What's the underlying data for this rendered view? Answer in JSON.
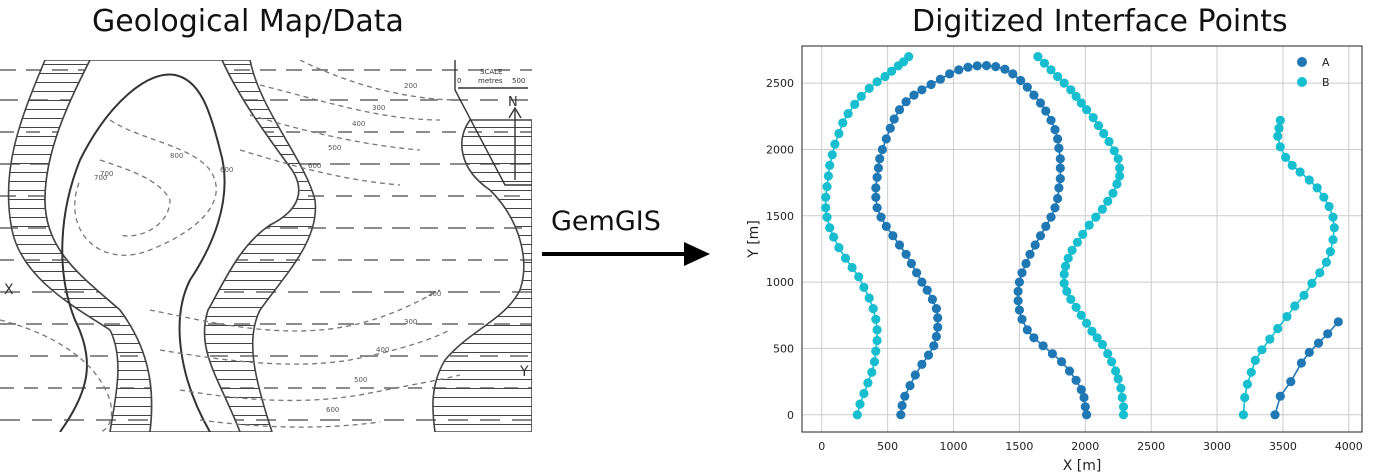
{
  "left": {
    "title": "Geological Map/Data",
    "map": {
      "scale_label": "SCALE",
      "scale_units": "metres",
      "scale_start": "0",
      "scale_end": "500",
      "north_label": "N",
      "x_marker": "X",
      "y_marker": "Y",
      "contour_labels": [
        "200",
        "300",
        "400",
        "500",
        "600",
        "600",
        "700",
        "700",
        "800",
        "200",
        "300",
        "400",
        "500",
        "600"
      ]
    }
  },
  "arrow": {
    "label": "GemGIS"
  },
  "chart_data": {
    "type": "scatter",
    "title": "Digitized Interface Points",
    "xlabel": "X [m]",
    "ylabel": "Y [m]",
    "xlim": [
      -150,
      4100
    ],
    "ylim": [
      -130,
      2780
    ],
    "xticks": [
      0,
      500,
      1000,
      1500,
      2000,
      2500,
      3000,
      3500,
      4000
    ],
    "yticks": [
      0,
      500,
      1000,
      1500,
      2000,
      2500
    ],
    "grid": true,
    "legend_position": "top-right",
    "series": [
      {
        "name": "A",
        "color": "#1f77b4",
        "lines": [
          [
            [
              600,
              0
            ],
            [
              610,
              70
            ],
            [
              630,
              140
            ],
            [
              670,
              220
            ],
            [
              710,
              300
            ],
            [
              760,
              380
            ],
            [
              810,
              450
            ],
            [
              850,
              520
            ],
            [
              870,
              590
            ],
            [
              880,
              660
            ],
            [
              880,
              730
            ],
            [
              870,
              800
            ],
            [
              840,
              870
            ],
            [
              800,
              940
            ],
            [
              760,
              1000
            ],
            [
              720,
              1070
            ],
            [
              680,
              1140
            ],
            [
              640,
              1210
            ],
            [
              590,
              1280
            ],
            [
              540,
              1350
            ],
            [
              490,
              1420
            ],
            [
              450,
              1490
            ],
            [
              420,
              1560
            ],
            [
              410,
              1640
            ],
            [
              410,
              1710
            ],
            [
              420,
              1790
            ],
            [
              430,
              1860
            ],
            [
              440,
              1930
            ],
            [
              460,
              2000
            ],
            [
              490,
              2080
            ],
            [
              520,
              2160
            ],
            [
              550,
              2230
            ],
            [
              590,
              2300
            ],
            [
              640,
              2360
            ],
            [
              700,
              2410
            ],
            [
              760,
              2450
            ],
            [
              830,
              2490
            ],
            [
              900,
              2530
            ],
            [
              970,
              2570
            ],
            [
              1040,
              2600
            ],
            [
              1110,
              2620
            ],
            [
              1180,
              2630
            ],
            [
              1250,
              2632
            ],
            [
              1320,
              2625
            ],
            [
              1390,
              2605
            ],
            [
              1450,
              2570
            ],
            [
              1510,
              2520
            ],
            [
              1560,
              2470
            ],
            [
              1610,
              2410
            ],
            [
              1660,
              2350
            ],
            [
              1700,
              2290
            ],
            [
              1740,
              2220
            ],
            [
              1770,
              2150
            ],
            [
              1790,
              2080
            ],
            [
              1800,
              2010
            ],
            [
              1810,
              1930
            ],
            [
              1810,
              1860
            ],
            [
              1810,
              1780
            ],
            [
              1800,
              1710
            ],
            [
              1790,
              1630
            ],
            [
              1770,
              1560
            ],
            [
              1740,
              1490
            ],
            [
              1700,
              1420
            ],
            [
              1660,
              1350
            ],
            [
              1620,
              1280
            ],
            [
              1580,
              1210
            ],
            [
              1550,
              1140
            ],
            [
              1520,
              1070
            ],
            [
              1500,
              1000
            ],
            [
              1490,
              930
            ],
            [
              1490,
              860
            ],
            [
              1500,
              790
            ],
            [
              1520,
              720
            ],
            [
              1560,
              640
            ],
            [
              1610,
              580
            ],
            [
              1680,
              520
            ],
            [
              1750,
              460
            ],
            [
              1820,
              400
            ],
            [
              1880,
              330
            ],
            [
              1930,
              260
            ],
            [
              1970,
              190
            ],
            [
              1990,
              130
            ],
            [
              2000,
              60
            ],
            [
              2010,
              0
            ]
          ],
          [
            [
              3440,
              0
            ],
            [
              3480,
              140
            ],
            [
              3560,
              250
            ],
            [
              3640,
              390
            ],
            [
              3700,
              470
            ],
            [
              3770,
              540
            ],
            [
              3840,
              610
            ],
            [
              3920,
              700
            ]
          ]
        ]
      },
      {
        "name": "B",
        "color": "#17becf",
        "lines": [
          [
            [
              270,
              0
            ],
            [
              290,
              80
            ],
            [
              320,
              160
            ],
            [
              350,
              240
            ],
            [
              380,
              320
            ],
            [
              400,
              400
            ],
            [
              410,
              480
            ],
            [
              420,
              560
            ],
            [
              420,
              640
            ],
            [
              410,
              720
            ],
            [
              390,
              800
            ],
            [
              360,
              880
            ],
            [
              320,
              960
            ],
            [
              280,
              1040
            ],
            [
              230,
              1110
            ],
            [
              180,
              1180
            ],
            [
              130,
              1260
            ],
            [
              90,
              1340
            ],
            [
              60,
              1410
            ],
            [
              40,
              1490
            ],
            [
              30,
              1560
            ],
            [
              30,
              1640
            ],
            [
              40,
              1720
            ],
            [
              50,
              1800
            ],
            [
              60,
              1880
            ],
            [
              80,
              1960
            ],
            [
              100,
              2040
            ],
            [
              130,
              2120
            ],
            [
              160,
              2200
            ],
            [
              200,
              2270
            ],
            [
              250,
              2340
            ],
            [
              300,
              2400
            ],
            [
              360,
              2460
            ],
            [
              420,
              2510
            ],
            [
              480,
              2550
            ],
            [
              530,
              2590
            ],
            [
              580,
              2630
            ],
            [
              620,
              2660
            ],
            [
              660,
              2700
            ]
          ],
          [
            [
              1640,
              2700
            ],
            [
              1690,
              2650
            ],
            [
              1740,
              2600
            ],
            [
              1790,
              2550
            ],
            [
              1840,
              2500
            ],
            [
              1890,
              2450
            ],
            [
              1930,
              2400
            ],
            [
              1970,
              2350
            ],
            [
              2010,
              2300
            ],
            [
              2060,
              2240
            ],
            [
              2100,
              2180
            ],
            [
              2140,
              2120
            ],
            [
              2180,
              2060
            ],
            [
              2220,
              1990
            ],
            [
              2250,
              1930
            ],
            [
              2260,
              1860
            ],
            [
              2260,
              1800
            ],
            [
              2240,
              1740
            ],
            [
              2210,
              1670
            ],
            [
              2170,
              1610
            ],
            [
              2130,
              1550
            ],
            [
              2080,
              1490
            ],
            [
              2030,
              1430
            ],
            [
              1980,
              1360
            ],
            [
              1940,
              1300
            ],
            [
              1900,
              1240
            ],
            [
              1870,
              1180
            ],
            [
              1850,
              1120
            ],
            [
              1840,
              1060
            ],
            [
              1840,
              990
            ],
            [
              1860,
              930
            ],
            [
              1890,
              870
            ],
            [
              1930,
              810
            ],
            [
              1970,
              750
            ],
            [
              2010,
              690
            ],
            [
              2050,
              630
            ],
            [
              2090,
              580
            ],
            [
              2130,
              530
            ],
            [
              2170,
              460
            ],
            [
              2200,
              400
            ],
            [
              2230,
              330
            ],
            [
              2250,
              270
            ],
            [
              2270,
              200
            ],
            [
              2280,
              130
            ],
            [
              2290,
              60
            ],
            [
              2290,
              0
            ]
          ],
          [
            [
              3200,
              0
            ],
            [
              3210,
              130
            ],
            [
              3230,
              230
            ],
            [
              3260,
              320
            ],
            [
              3290,
              410
            ],
            [
              3340,
              490
            ],
            [
              3400,
              570
            ],
            [
              3460,
              650
            ],
            [
              3530,
              740
            ],
            [
              3590,
              820
            ],
            [
              3660,
              900
            ],
            [
              3720,
              990
            ],
            [
              3780,
              1070
            ],
            [
              3830,
              1150
            ],
            [
              3860,
              1230
            ],
            [
              3880,
              1320
            ],
            [
              3890,
              1410
            ],
            [
              3880,
              1490
            ],
            [
              3850,
              1570
            ],
            [
              3810,
              1640
            ],
            [
              3760,
              1710
            ],
            [
              3700,
              1770
            ],
            [
              3630,
              1830
            ],
            [
              3570,
              1880
            ],
            [
              3520,
              1940
            ],
            [
              3480,
              2020
            ],
            [
              3460,
              2100
            ],
            [
              3470,
              2160
            ],
            [
              3480,
              2220
            ]
          ]
        ]
      }
    ]
  }
}
